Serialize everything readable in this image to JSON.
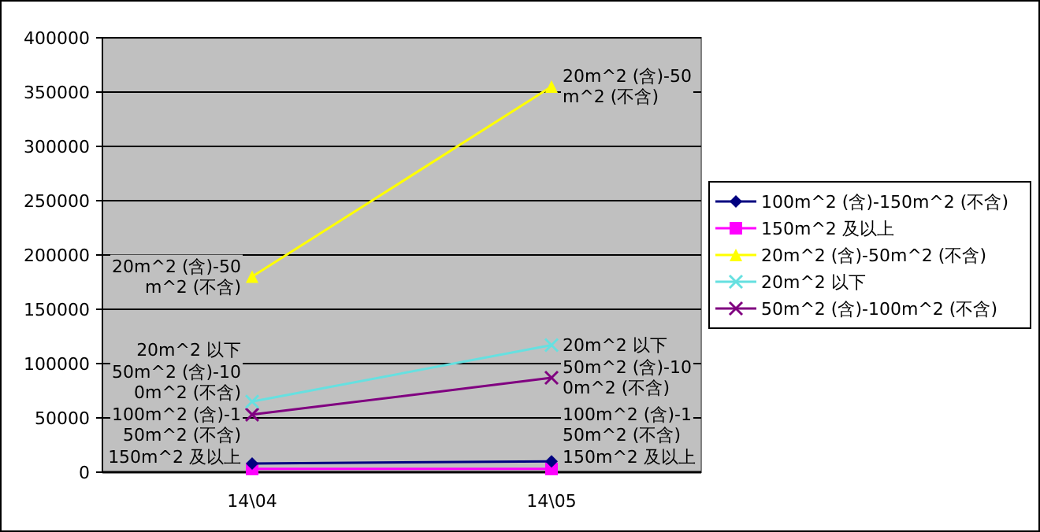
{
  "chart_data": {
    "type": "line",
    "categories": [
      "14\\04",
      "14\\05"
    ],
    "series": [
      {
        "name": "100m^2 (含)-150m^2 (不含)",
        "color": "#000080",
        "marker": "diamond",
        "values": [
          8000,
          10000
        ]
      },
      {
        "name": "150m^2 及以上",
        "color": "#ff00ff",
        "marker": "square",
        "values": [
          3000,
          3000
        ]
      },
      {
        "name": "20m^2 (含)-50m^2 (不含)",
        "color": "#ffff00",
        "marker": "triangle",
        "values": [
          180000,
          355000
        ]
      },
      {
        "name": "20m^2 以下",
        "color": "#66e0e0",
        "marker": "cross",
        "values": [
          65000,
          117000
        ]
      },
      {
        "name": "50m^2 (含)-100m^2 (不含)",
        "color": "#800080",
        "marker": "cross",
        "values": [
          53000,
          87000
        ]
      }
    ],
    "annotations": [
      {
        "text": "100m^2 (含)-150m^2 (不含)",
        "x": "14\\04",
        "y": 8000
      },
      {
        "text": "150m^2 及以上",
        "x": "14\\04",
        "y": 3000
      },
      {
        "text": "20m^2 (含)-50m^2 (不含)",
        "x": "14\\04",
        "y": 180000
      },
      {
        "text": "20m^2 以下",
        "x": "14\\04",
        "y": 65000
      },
      {
        "text": "50m^2 (含)-100m^2 (不含)",
        "x": "14\\04",
        "y": 53000
      },
      {
        "text": "100m^2 (含)-150m^2 (不含)",
        "x": "14\\05",
        "y": 10000
      },
      {
        "text": "150m^2 及以上",
        "x": "14\\05",
        "y": 3000
      },
      {
        "text": "20m^2 (含)-50m^2 (不含)",
        "x": "14\\05",
        "y": 355000
      },
      {
        "text": "20m^2 以下",
        "x": "14\\05",
        "y": 117000
      },
      {
        "text": "50m^2 (含)-100m^2 (不含)",
        "x": "14\\05",
        "y": 87000
      }
    ],
    "ylim": [
      0,
      400000
    ],
    "yticks": [
      0,
      50000,
      100000,
      150000,
      200000,
      250000,
      300000,
      350000,
      400000
    ],
    "grid": "y",
    "legend": "right",
    "line_style": "solid"
  }
}
